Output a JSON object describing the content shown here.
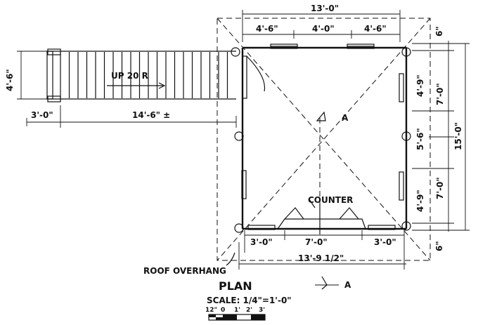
{
  "plan": {
    "title": "PLAN",
    "scale_label": "SCALE: 1/4\"=1'-0\"",
    "scale_ticks": [
      "12\"",
      "0",
      "1'",
      "2'",
      "3'"
    ],
    "stair_label": "UP 20 R",
    "counter_label": "COUNTER",
    "roof_overhang_label": "ROOF OVERHANG",
    "section_mark": "A"
  },
  "dimensions": {
    "top_overall": "13'-0\"",
    "top_segments": [
      "4'-6\"",
      "4'-0\"",
      "4'-6\""
    ],
    "bottom_segments": [
      "3'-0\"",
      "7'-0\"",
      "3'-0\""
    ],
    "bottom_overall": "13'-9 1/2\"",
    "right_inner_small_top": "6\"",
    "right_inner_small_bottom": "6\"",
    "right_segments": [
      "4'-9\"",
      "5'-6\"",
      "4'-9\""
    ],
    "right_halves": [
      "7'-0\"",
      "7'-0\""
    ],
    "right_overall": "15'-0\"",
    "stair_width": "4'-6\"",
    "stair_landing": "3'-0\"",
    "stair_run": "14'-6\" ±"
  }
}
